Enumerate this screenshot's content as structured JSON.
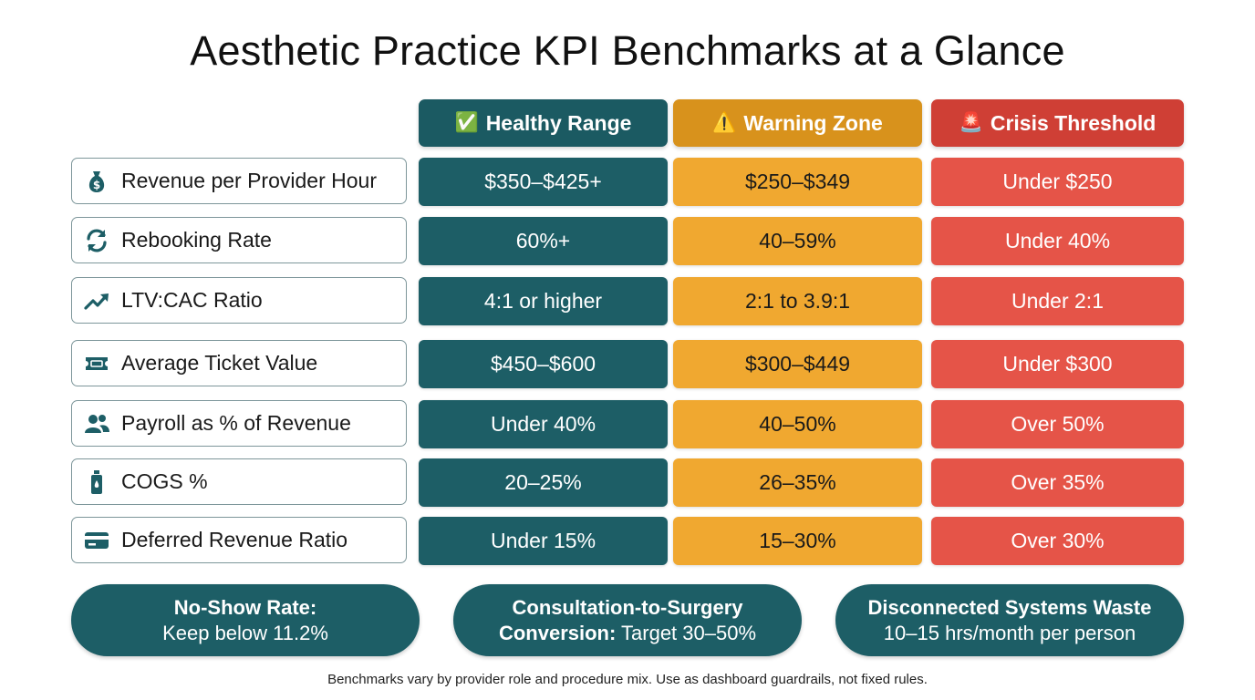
{
  "title": "Aesthetic Practice KPI Benchmarks at a Glance",
  "headers": {
    "healthy": {
      "icon": "✅",
      "label": "Healthy Range"
    },
    "warning": {
      "icon": "⚠️",
      "label": "Warning Zone"
    },
    "crisis": {
      "icon": "🚨",
      "label": "Crisis Threshold"
    }
  },
  "rows": [
    {
      "icon": "money-bag-icon",
      "label": "Revenue per Provider Hour",
      "healthy": "$350–$425+",
      "warning": "$250–$349",
      "crisis": "Under $250"
    },
    {
      "icon": "refresh-icon",
      "label": "Rebooking Rate",
      "healthy": "60%+",
      "warning": "40–59%",
      "crisis": "Under 40%"
    },
    {
      "icon": "trend-up-icon",
      "label": "LTV:CAC Ratio",
      "healthy": "4:1 or higher",
      "warning": "2:1 to 3.9:1",
      "crisis": "Under 2:1"
    },
    {
      "icon": "ticket-icon",
      "label": "Average Ticket Value",
      "healthy": "$450–$600",
      "warning": "$300–$449",
      "crisis": "Under $300"
    },
    {
      "icon": "people-icon",
      "label": "Payroll as % of Revenue",
      "healthy": "Under 40%",
      "warning": "40–50%",
      "crisis": "Over 50%"
    },
    {
      "icon": "product-bottle-icon",
      "label": "COGS %",
      "healthy": "20–25%",
      "warning": "26–35%",
      "crisis": "Over 35%"
    },
    {
      "icon": "credit-card-icon",
      "label": "Deferred Revenue Ratio",
      "healthy": "Under 15%",
      "warning": "15–30%",
      "crisis": "Over 30%"
    }
  ],
  "pills": [
    {
      "bold": "No-Show Rate:",
      "rest": "Keep below 11.2%"
    },
    {
      "bold": "Consultation-to-Surgery",
      "bold2": "Conversion:",
      "rest": " Target 30–50%"
    },
    {
      "bold": "Disconnected Systems Waste",
      "rest": "10–15 hrs/month per person"
    }
  ],
  "footnote": "Benchmarks vary by provider role and procedure mix. Use as dashboard guardrails, not fixed rules.",
  "colors": {
    "healthy": "#1d5e66",
    "warning": "#f0a830",
    "crisis": "#e55448"
  }
}
